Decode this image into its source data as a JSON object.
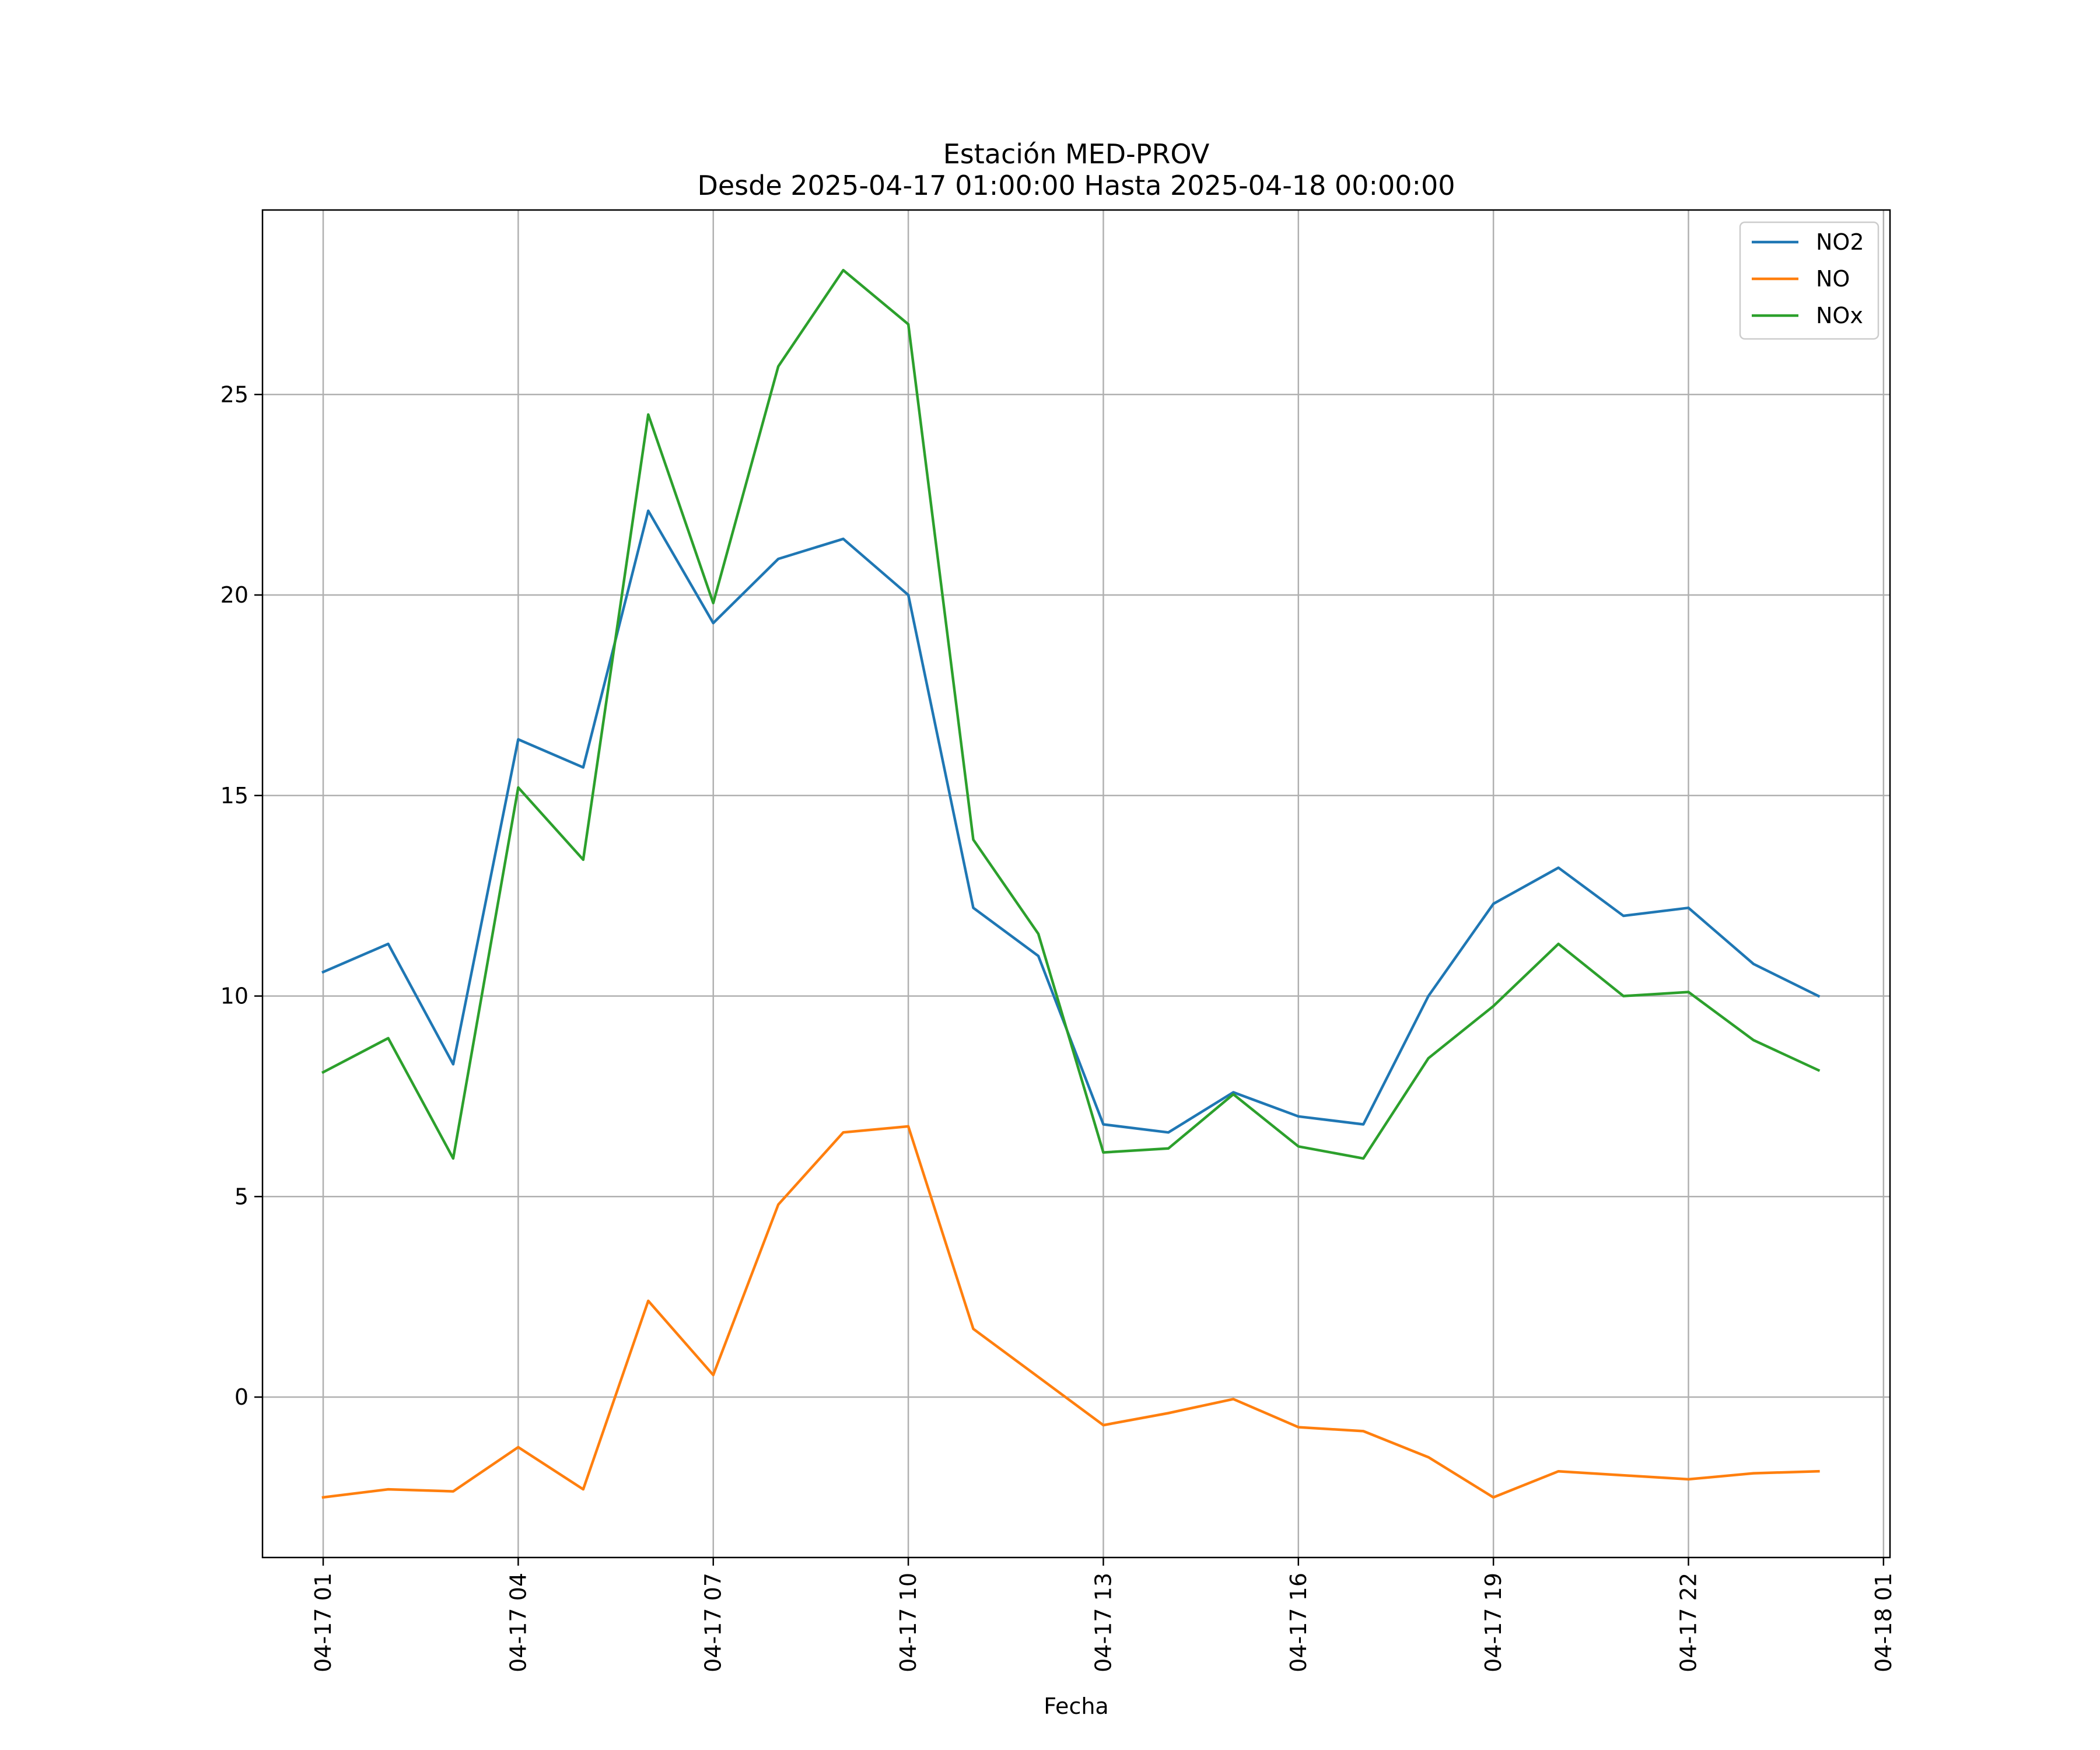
{
  "chart_data": {
    "type": "line",
    "title": "Estación MED-PROV",
    "subtitle": "Desde 2025-04-17 01:00:00 Hasta 2025-04-18 00:00:00",
    "xlabel": "Fecha",
    "ylabel": "",
    "x": [
      "2025-04-17 01:00",
      "2025-04-17 02:00",
      "2025-04-17 03:00",
      "2025-04-17 04:00",
      "2025-04-17 05:00",
      "2025-04-17 06:00",
      "2025-04-17 07:00",
      "2025-04-17 08:00",
      "2025-04-17 09:00",
      "2025-04-17 10:00",
      "2025-04-17 11:00",
      "2025-04-17 12:00",
      "2025-04-17 13:00",
      "2025-04-17 14:00",
      "2025-04-17 15:00",
      "2025-04-17 16:00",
      "2025-04-17 17:00",
      "2025-04-17 18:00",
      "2025-04-17 19:00",
      "2025-04-17 20:00",
      "2025-04-17 21:00",
      "2025-04-17 22:00",
      "2025-04-17 23:00",
      "2025-04-18 00:00"
    ],
    "xlim": [
      "2025-04-17 00:04",
      "2025-04-18 01:06"
    ],
    "ylim": [
      -4.0,
      29.6
    ],
    "x_ticks": [
      "2025-04-17 01:00",
      "2025-04-17 04:00",
      "2025-04-17 07:00",
      "2025-04-17 10:00",
      "2025-04-17 13:00",
      "2025-04-17 16:00",
      "2025-04-17 19:00",
      "2025-04-17 22:00",
      "2025-04-18 01:00"
    ],
    "x_tick_labels": [
      "04-17 01",
      "04-17 04",
      "04-17 07",
      "04-17 10",
      "04-17 13",
      "04-17 16",
      "04-17 19",
      "04-17 22",
      "04-18 01"
    ],
    "y_ticks": [
      0,
      5,
      10,
      15,
      20,
      25
    ],
    "y_tick_labels": [
      "0",
      "5",
      "10",
      "15",
      "20",
      "25"
    ],
    "grid": true,
    "legend_position": "top-right",
    "series": [
      {
        "name": "NO2",
        "color": "#1f77b4",
        "values": [
          10.6,
          11.3,
          8.3,
          16.4,
          15.7,
          22.1,
          19.3,
          20.9,
          21.4,
          20.0,
          12.2,
          11.0,
          6.8,
          6.6,
          7.6,
          7.0,
          6.8,
          10.0,
          12.3,
          13.2,
          12.0,
          12.2,
          10.8,
          10.0
        ]
      },
      {
        "name": "NO",
        "color": "#ff7f0e",
        "values": [
          -2.5,
          -2.3,
          -2.35,
          -1.25,
          -2.3,
          2.4,
          0.55,
          4.8,
          6.6,
          6.75,
          1.7,
          0.5,
          -0.7,
          -0.4,
          -0.05,
          -0.75,
          -0.85,
          -1.5,
          -2.5,
          -1.85,
          -1.95,
          -2.05,
          -1.9,
          -1.85
        ]
      },
      {
        "name": "NOx",
        "color": "#2ca02c",
        "values": [
          8.1,
          8.95,
          5.95,
          15.2,
          13.4,
          24.5,
          19.8,
          25.7,
          28.1,
          26.75,
          13.9,
          11.55,
          6.1,
          6.2,
          7.55,
          6.25,
          5.95,
          8.45,
          9.75,
          11.3,
          10.0,
          10.1,
          8.9,
          8.15
        ]
      }
    ]
  }
}
